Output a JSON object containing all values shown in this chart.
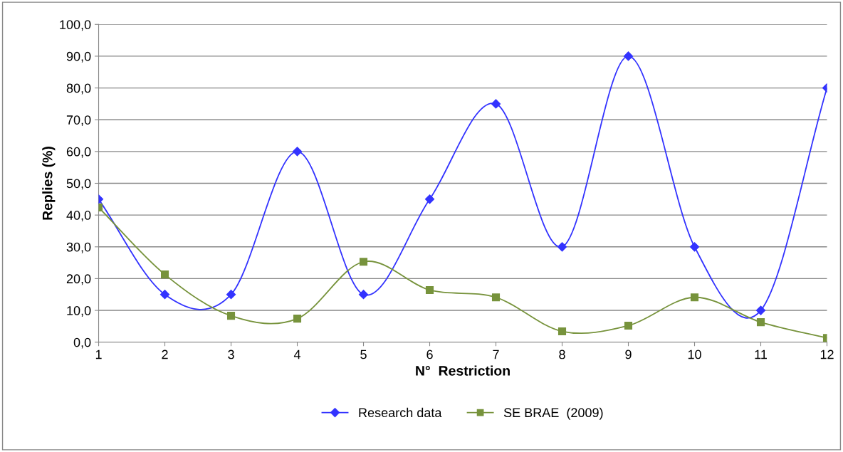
{
  "chart_data": {
    "type": "line",
    "xlabel": "N°  Restriction",
    "ylabel": "Replies (%)",
    "x": [
      1,
      2,
      3,
      4,
      5,
      6,
      7,
      8,
      9,
      10,
      11,
      12
    ],
    "series": [
      {
        "name": "Research data",
        "color": "#3333ff",
        "marker": "diamond",
        "values": [
          45,
          15,
          15,
          60,
          15,
          45,
          75,
          30,
          90,
          30,
          10,
          80
        ]
      },
      {
        "name": "SE BRAE  (2009)",
        "color": "#77933c",
        "marker": "square",
        "values": [
          42.4,
          21.3,
          8.3,
          7.4,
          25.3,
          16.4,
          14.1,
          3.4,
          5.2,
          14.1,
          6.3,
          1.3
        ]
      }
    ],
    "xlim": [
      1,
      12
    ],
    "xticks": [
      1,
      2,
      3,
      4,
      5,
      6,
      7,
      8,
      9,
      10,
      11,
      12
    ],
    "ylim": [
      0,
      100
    ],
    "yticks": [
      {
        "value": 0,
        "label": "0,0"
      },
      {
        "value": 10,
        "label": "10,0"
      },
      {
        "value": 20,
        "label": "20,0"
      },
      {
        "value": 30,
        "label": "30,0"
      },
      {
        "value": 40,
        "label": "40,0"
      },
      {
        "value": 50,
        "label": "50,0"
      },
      {
        "value": 60,
        "label": "60,0"
      },
      {
        "value": 70,
        "label": "70,0"
      },
      {
        "value": 80,
        "label": "80,0"
      },
      {
        "value": 90,
        "label": "90,0"
      },
      {
        "value": 100,
        "label": "100,0"
      }
    ],
    "grid": "y",
    "legend": "bottom",
    "line_style": "solid"
  }
}
